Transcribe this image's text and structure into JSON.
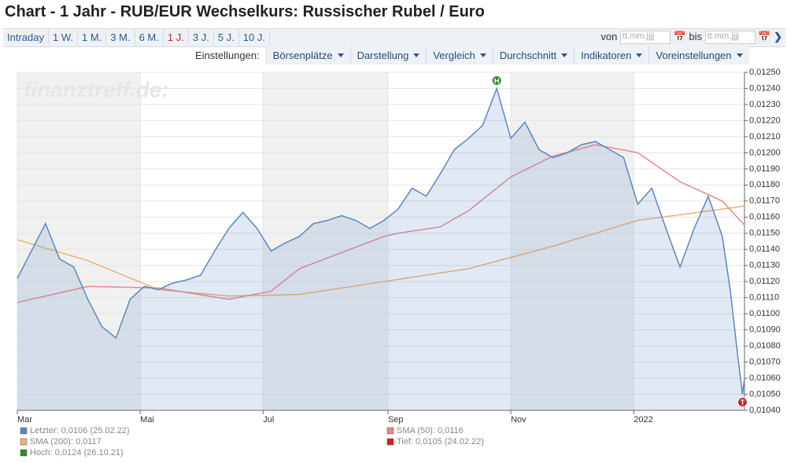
{
  "header": {
    "title": "Chart - 1 Jahr - RUB/EUR Wechselkurs: Russischer Rubel / Euro",
    "tabs": [
      "Intraday",
      "1 W.",
      "1 M.",
      "3 M.",
      "6 M.",
      "1 J.",
      "3 J.",
      "5 J.",
      "10 J."
    ],
    "active_tab": 5,
    "from_label": "von",
    "to_label": "bis",
    "date_placeholder": "tt.mm.jjjj",
    "settings_label": "Einstellungen:",
    "menus": [
      "Börsenplätze",
      "Darstellung",
      "Vergleich",
      "Durchschnitt",
      "Indikatoren",
      "Voreinstellungen"
    ]
  },
  "chart_data": {
    "type": "line",
    "watermark": "finanztreff.de:",
    "xlim": [
      0,
      361
    ],
    "xticks": [
      {
        "value": 0,
        "label": "Mar"
      },
      {
        "value": 61,
        "label": "Mai"
      },
      {
        "value": 122,
        "label": "Jul"
      },
      {
        "value": 184,
        "label": "Sep"
      },
      {
        "value": 245,
        "label": "Nov"
      },
      {
        "value": 306,
        "label": "2022"
      }
    ],
    "ylim": [
      0.0104,
      0.0125
    ],
    "yticks": [
      {
        "value": 0.0104,
        "label": "0,01040"
      },
      {
        "value": 0.0105,
        "label": "0,01050"
      },
      {
        "value": 0.0106,
        "label": "0,01060"
      },
      {
        "value": 0.0107,
        "label": "0,01070"
      },
      {
        "value": 0.0108,
        "label": "0,01080"
      },
      {
        "value": 0.0109,
        "label": "0,01090"
      },
      {
        "value": 0.011,
        "label": "0,01100"
      },
      {
        "value": 0.0111,
        "label": "0,01110"
      },
      {
        "value": 0.0112,
        "label": "0,01120"
      },
      {
        "value": 0.0113,
        "label": "0,01130"
      },
      {
        "value": 0.0114,
        "label": "0,01140"
      },
      {
        "value": 0.0115,
        "label": "0,01150"
      },
      {
        "value": 0.0116,
        "label": "0,01160"
      },
      {
        "value": 0.0117,
        "label": "0,01170"
      },
      {
        "value": 0.0118,
        "label": "0,01180"
      },
      {
        "value": 0.0119,
        "label": "0,01190"
      },
      {
        "value": 0.012,
        "label": "0,01200"
      },
      {
        "value": 0.0121,
        "label": "0,01210"
      },
      {
        "value": 0.0122,
        "label": "0,01220"
      },
      {
        "value": 0.0123,
        "label": "0,01230"
      },
      {
        "value": 0.0124,
        "label": "0,01240"
      },
      {
        "value": 0.0125,
        "label": "0,01250"
      }
    ],
    "grid": true,
    "series": [
      {
        "name": "Letzter: 0,0106 (25.02.22)",
        "color": "#5b87c0",
        "area": true,
        "x": [
          0,
          7,
          14,
          21,
          28,
          35,
          42,
          49,
          56,
          63,
          70,
          77,
          84,
          91,
          98,
          105,
          112,
          119,
          126,
          133,
          140,
          147,
          154,
          161,
          168,
          175,
          182,
          189,
          196,
          203,
          210,
          217,
          224,
          231,
          238,
          245,
          252,
          259,
          266,
          273,
          280,
          287,
          294,
          301,
          308,
          315,
          322,
          329,
          336,
          343,
          350,
          354,
          358,
          360,
          361
        ],
        "values": [
          0.01122,
          0.01139,
          0.01156,
          0.01134,
          0.01129,
          0.01109,
          0.01092,
          0.01085,
          0.01109,
          0.01117,
          0.01115,
          0.01119,
          0.01121,
          0.01124,
          0.01139,
          0.01153,
          0.01163,
          0.01153,
          0.01139,
          0.01144,
          0.01148,
          0.01156,
          0.01158,
          0.01161,
          0.01158,
          0.01153,
          0.01158,
          0.01165,
          0.01178,
          0.01173,
          0.01187,
          0.01202,
          0.01209,
          0.01217,
          0.0124,
          0.01209,
          0.01219,
          0.01202,
          0.01197,
          0.012,
          0.01205,
          0.01207,
          0.01202,
          0.01197,
          0.01168,
          0.01178,
          0.01153,
          0.01129,
          0.01153,
          0.01173,
          0.01148,
          0.01114,
          0.0107,
          0.0105,
          0.0106
        ]
      },
      {
        "name": "SMA (50): 0,0116",
        "color": "#e88a8a",
        "x": [
          0,
          35,
          70,
          105,
          126,
          140,
          161,
          182,
          189,
          210,
          224,
          245,
          266,
          287,
          308,
          329,
          350,
          361
        ],
        "values": [
          0.01107,
          0.01117,
          0.01116,
          0.01109,
          0.01114,
          0.01128,
          0.01138,
          0.01148,
          0.0115,
          0.01154,
          0.01164,
          0.01185,
          0.01198,
          0.01205,
          0.012,
          0.01182,
          0.0117,
          0.01155
        ]
      },
      {
        "name": "SMA (200): 0,0117",
        "color": "#f0b070",
        "x": [
          0,
          35,
          70,
          105,
          140,
          182,
          224,
          266,
          308,
          350,
          361
        ],
        "values": [
          0.01146,
          0.01133,
          0.01115,
          0.01111,
          0.01112,
          0.0112,
          0.01128,
          0.01142,
          0.01158,
          0.01165,
          0.01167
        ]
      }
    ],
    "annotations": [
      {
        "label": "T",
        "text": "Tief: 0,0105 (24.02.22)",
        "color": "#d42020",
        "x": 360,
        "y": 0.0105
      },
      {
        "label": "H",
        "text": "Hoch: 0,0124 (26.10.21)",
        "color": "#2a8a2a",
        "x": 238,
        "y": 0.0124
      }
    ]
  }
}
